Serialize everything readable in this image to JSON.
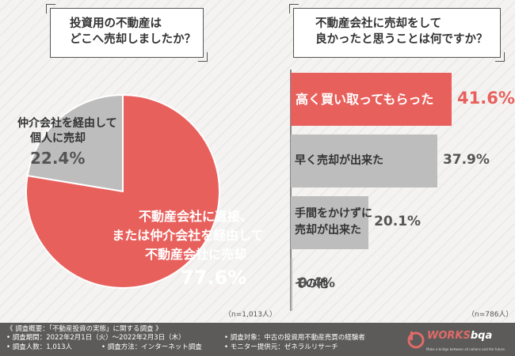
{
  "left_question": {
    "line1": "投資用の不動産は",
    "line2": "どこへ売却しましたか？"
  },
  "right_question": {
    "line1": "不動産会社に売却をして",
    "line2": "良かったと思うことは何ですか？"
  },
  "chart_data": [
    {
      "type": "pie",
      "slices": [
        {
          "label_line1": "不動産会社に直接、",
          "label_line2": "または仲介会社を経由して",
          "label_line3": "不動産会社に売却",
          "value": 77.6,
          "value_label": "77.6%",
          "color": "#e8605c"
        },
        {
          "label_line1": "仲介会社を経由して",
          "label_line2": "個人に売却",
          "value": 22.4,
          "value_label": "22.4%",
          "color": "#bdbdbd"
        }
      ],
      "note": "（n=1,013人）"
    },
    {
      "type": "bar",
      "orientation": "horizontal",
      "categories": [
        "高く買い取ってもらった",
        "早く売却が出来た",
        "手間をかけずに売却が出来た",
        "その他"
      ],
      "category_lines": [
        [
          "高く買い取ってもらった"
        ],
        [
          "早く売却が出来た"
        ],
        [
          "手間をかけずに",
          "売却が出来た"
        ],
        [
          "その他"
        ]
      ],
      "values": [
        41.6,
        37.9,
        20.1,
        0.4
      ],
      "value_labels": [
        "41.6%",
        "37.9%",
        "20.1%",
        "0.4%"
      ],
      "highlight_color": "#e8605c",
      "bar_color": "#bdbdbd",
      "xlim": [
        0,
        41.6
      ],
      "note": "（n=786人）"
    }
  ],
  "footer": {
    "heading": "《 調査概要：「不動産投資の実態」に関する調査 》",
    "period": "• 調査期間：2022年2月1日（火）～2022年2月3日（木）",
    "count": "• 調査人数：1,013人",
    "method": "• 調査方法：インターネット調査",
    "target": "• 調査対象：中古の投資用不動産売買の経験者",
    "provider": "• モニター提供元：ゼネラルリサーチ",
    "logo_prefix": "WORKS",
    "logo_suffix": "bqa",
    "logo_sub": "Make a bridge between all nations and the future."
  }
}
